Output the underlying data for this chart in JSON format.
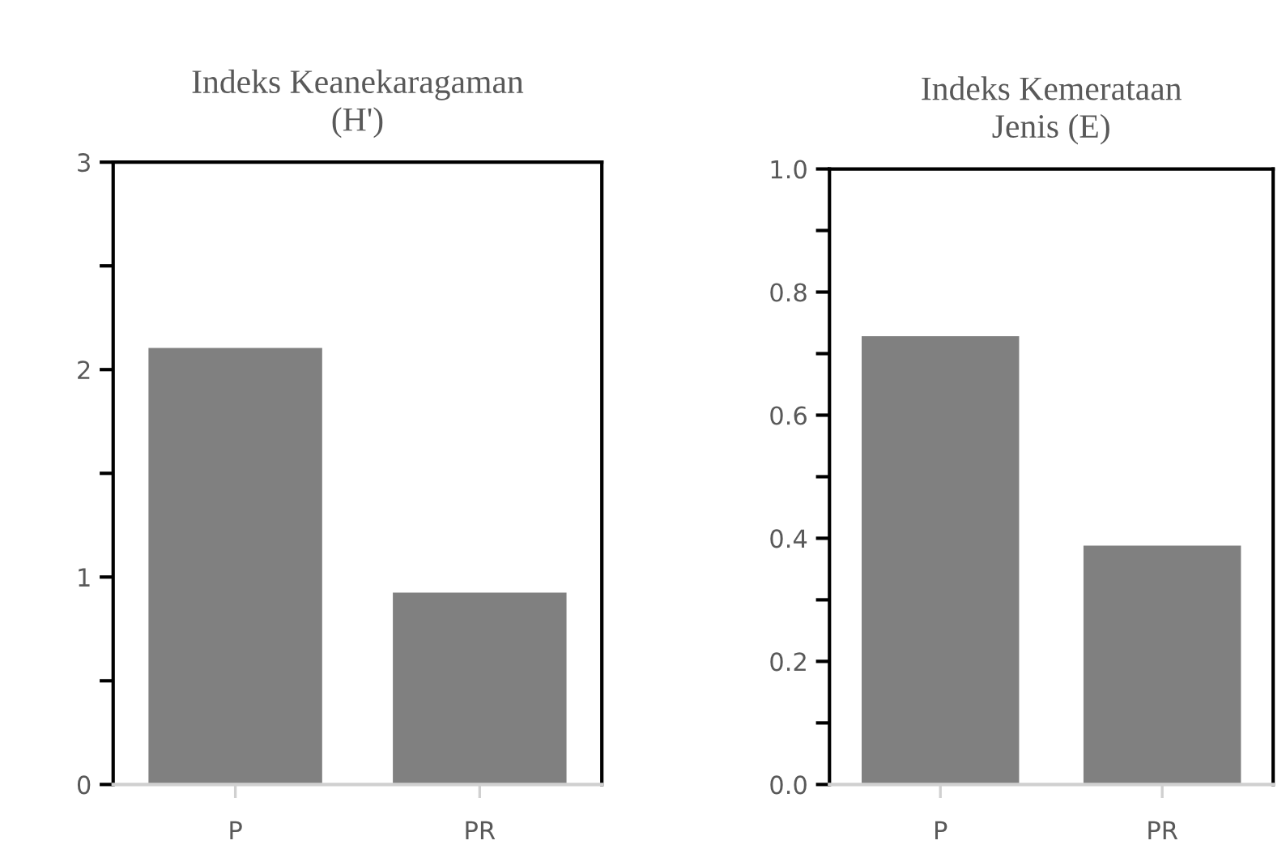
{
  "chart_data": [
    {
      "type": "bar",
      "title": "Indeks Keanekaragaman (H')",
      "categories": [
        "P",
        "PR"
      ],
      "values": [
        2.11,
        0.93
      ],
      "color": "#808080",
      "ylim": [
        0,
        3
      ],
      "yticks": [
        0,
        {
          "value": 0.5,
          "label": null
        },
        1,
        {
          "value": 1.5,
          "label": null
        },
        2,
        {
          "value": 2.5,
          "label": null
        },
        3
      ],
      "grid": false,
      "legend": false
    },
    {
      "type": "bar",
      "title": "Indeks Kemerataan Jenis (E)",
      "categories": [
        "P",
        "PR"
      ],
      "values": [
        0.73,
        0.39
      ],
      "color": "#808080",
      "ylim": [
        0,
        1.0
      ],
      "yticks": [
        {
          "value": 0,
          "label": "0.0"
        },
        {
          "value": 0.1,
          "label": null
        },
        {
          "value": 0.2,
          "label": "0.2"
        },
        {
          "value": 0.3,
          "label": null
        },
        {
          "value": 0.4,
          "label": "0.4"
        },
        {
          "value": 0.5,
          "label": null
        },
        {
          "value": 0.6,
          "label": "0.6"
        },
        {
          "value": 0.7,
          "label": null
        },
        {
          "value": 0.8,
          "label": "0.8"
        },
        {
          "value": 0.9,
          "label": null
        },
        {
          "value": 1.0,
          "label": "1.0"
        }
      ],
      "grid": false,
      "legend": false
    }
  ]
}
